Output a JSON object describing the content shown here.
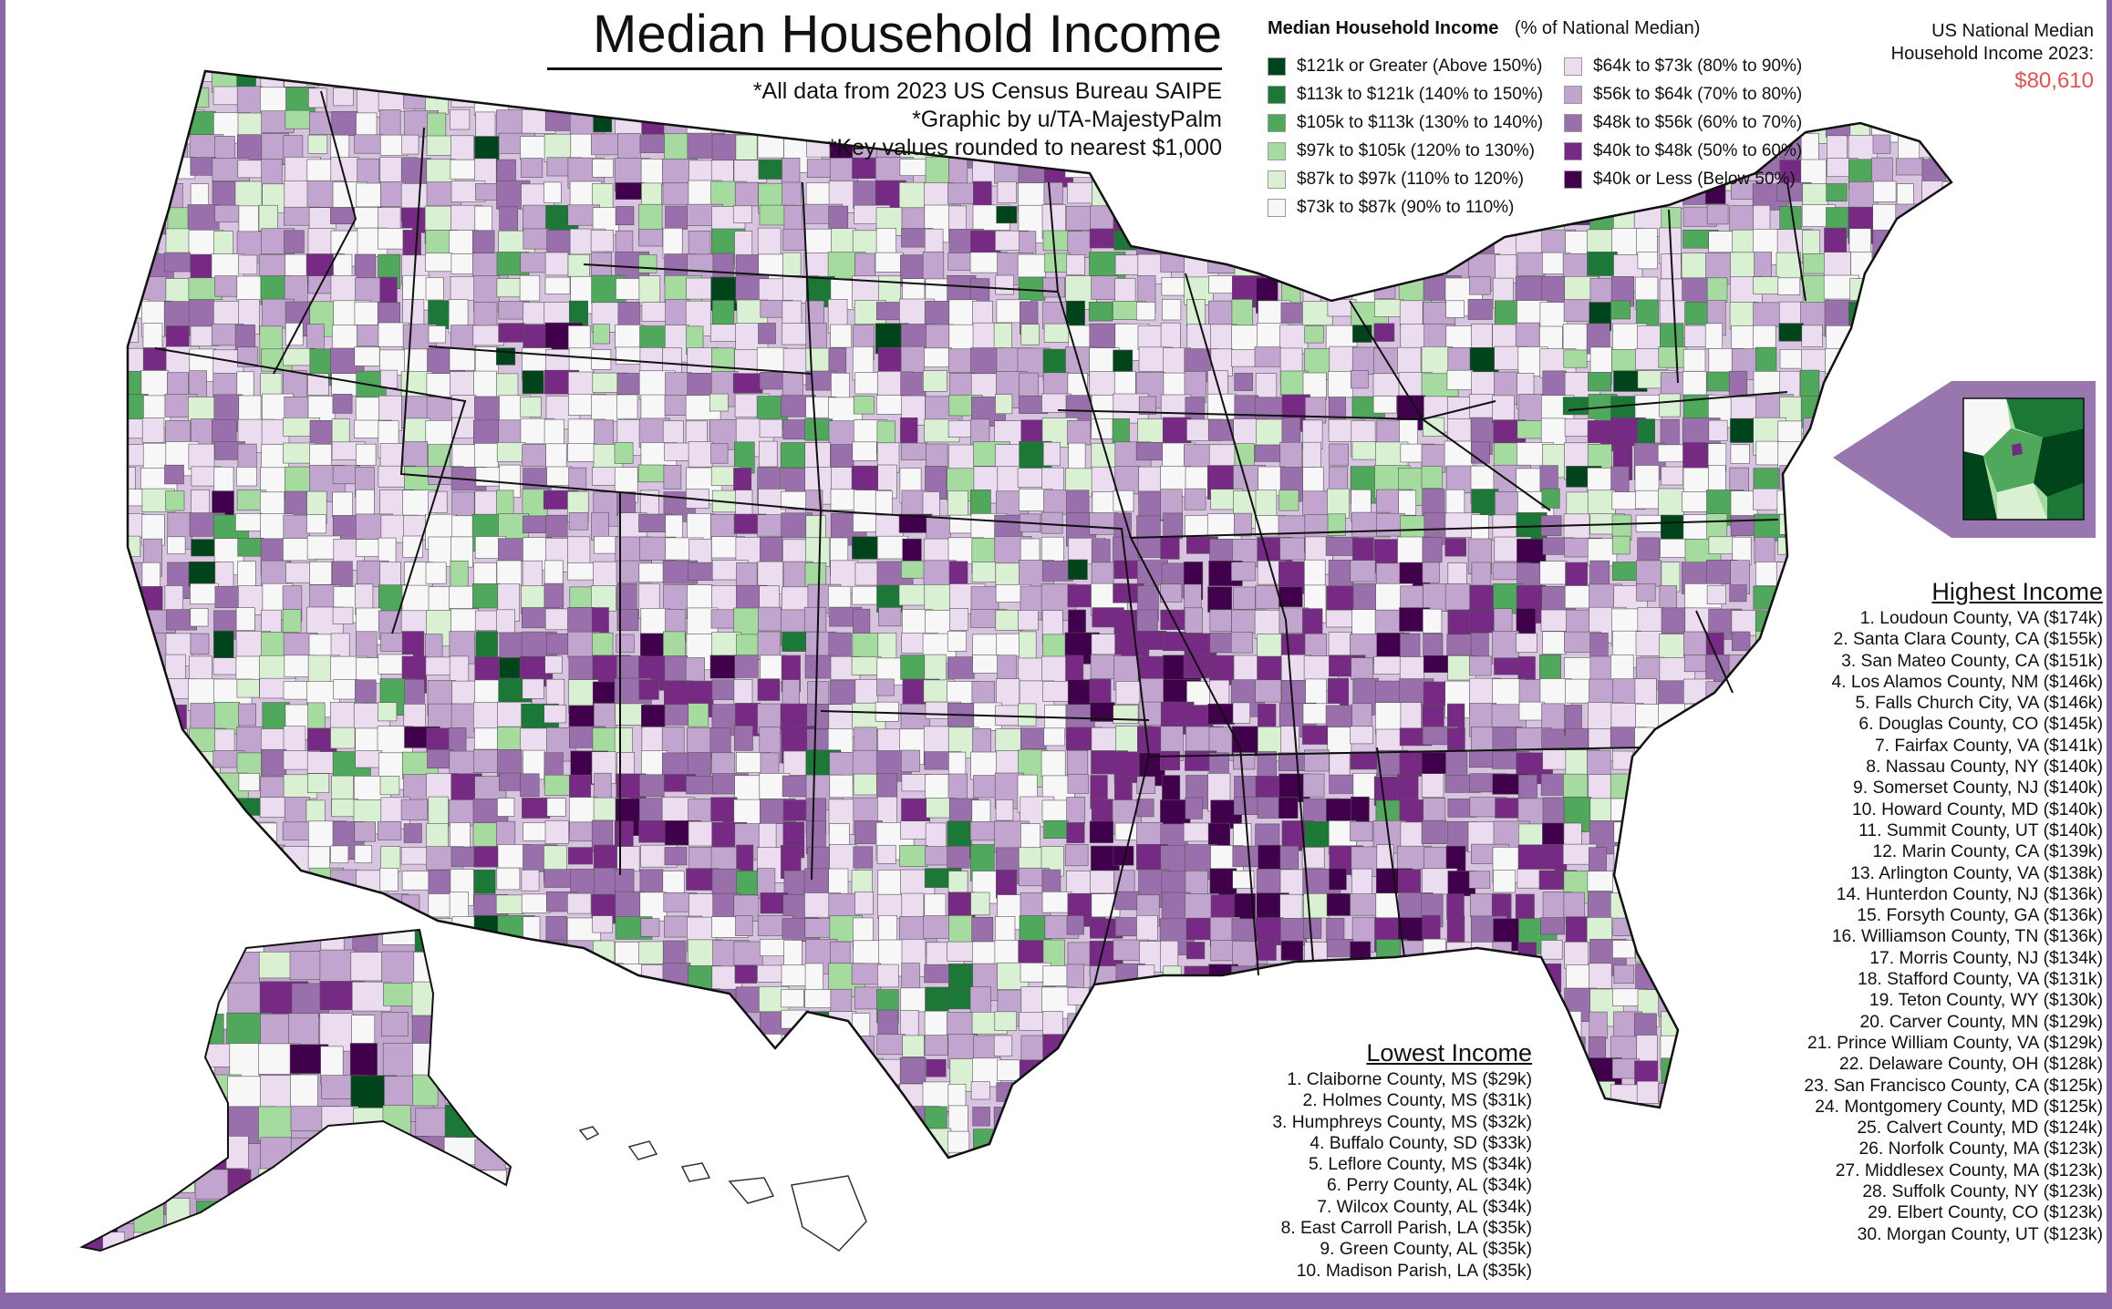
{
  "title": "Median Household Income",
  "subtitles": [
    "*All data from 2023 US Census Bureau SAIPE",
    "*Graphic by u/TA-MajestyPalm",
    "*Key values rounded to nearest $1,000"
  ],
  "legend": {
    "title": "Median Household Income",
    "subtitle": "(% of National Median)",
    "items": [
      {
        "label": "$121k or Greater (Above 150%)",
        "color": "#00441b"
      },
      {
        "label": "$113k to $121k (140% to 150%)",
        "color": "#1b7837"
      },
      {
        "label": "$105k to $113k (130% to 140%)",
        "color": "#4fa85b"
      },
      {
        "label": "$97k to $105k (120% to 130%)",
        "color": "#a6dba0"
      },
      {
        "label": "$87k to $97k (110% to 120%)",
        "color": "#d9f0d3"
      },
      {
        "label": "$73k to $87k (90% to 110%)",
        "color": "#f7f7f7"
      },
      {
        "label": "$64k to $73k (80% to 90%)",
        "color": "#ecdcef"
      },
      {
        "label": "$56k to $64k (70% to 80%)",
        "color": "#c2a5cf"
      },
      {
        "label": "$48k to $56k (60% to 70%)",
        "color": "#9970ab"
      },
      {
        "label": "$40k to $48k (50% to 60%)",
        "color": "#762a83"
      },
      {
        "label": "$40k or Less (Below 50%)",
        "color": "#40004b"
      }
    ]
  },
  "national": {
    "label_line1": "US National Median",
    "label_line2": "Household Income 2023:",
    "value": "$80,610"
  },
  "highest": {
    "title": "Highest Income",
    "items": [
      "1. Loudoun County, VA ($174k)",
      "2. Santa Clara County, CA ($155k)",
      "3. San Mateo County, CA ($151k)",
      "4. Los Alamos County, NM ($146k)",
      "5. Falls Church City, VA ($146k)",
      "6. Douglas County, CO ($145k)",
      "7. Fairfax County, VA ($141k)",
      "8. Nassau County, NY ($140k)",
      "9. Somerset County, NJ ($140k)",
      "10. Howard County, MD ($140k)",
      "11. Summit County, UT ($140k)",
      "12. Marin County, CA ($139k)",
      "13. Arlington County, VA ($138k)",
      "14. Hunterdon County, NJ ($136k)",
      "15. Forsyth County, GA ($136k)",
      "16. Williamson County, TN ($136k)",
      "17. Morris County, NJ ($134k)",
      "18. Stafford County, VA ($131k)",
      "19. Teton County, WY ($130k)",
      "20. Carver County, MN ($129k)",
      "21. Prince William County, VA ($129k)",
      "22. Delaware County, OH ($128k)",
      "23. San Francisco County, CA ($125k)",
      "24. Montgomery County, MD ($125k)",
      "25. Calvert County, MD ($124k)",
      "26. Norfolk County, MA ($123k)",
      "27. Middlesex County, MA ($123k)",
      "28. Suffolk County, NY ($123k)",
      "29. Elbert County, CO ($123k)",
      "30. Morgan County, UT ($123k)"
    ]
  },
  "lowest": {
    "title": "Lowest Income",
    "items": [
      "1. Claiborne County, MS ($29k)",
      "2. Holmes County, MS ($31k)",
      "3. Humphreys County, MS ($32k)",
      "4. Buffalo County, SD ($33k)",
      "5. Leflore County, MS ($34k)",
      "6. Perry County, AL ($34k)",
      "7. Wilcox County, AL ($34k)",
      "8. East Carroll Parish, LA ($35k)",
      "9. Green County, AL ($35k)",
      "10. Madison Parish, LA ($35k)"
    ]
  },
  "colors": {
    "frame": "#8a68a8",
    "national_value": "#e5534b",
    "state_border": "#111111",
    "county_border": "#555555"
  }
}
